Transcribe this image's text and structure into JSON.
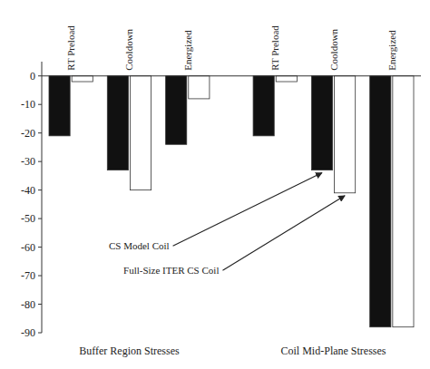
{
  "chart_data": {
    "type": "bar",
    "categories": [
      "RT Preload",
      "Cooldown",
      "Energized",
      "RT Preload",
      "Cooldown",
      "Energized"
    ],
    "group_labels": [
      "Buffer Region Stresses",
      "Coil Mid-Plane Stresses"
    ],
    "series": [
      {
        "color": "#111111",
        "values": [
          -21,
          -33,
          -24,
          -21,
          -33,
          -88
        ]
      },
      {
        "color": "#ffffff",
        "values": [
          -2,
          -40,
          -8,
          -2,
          -41,
          -88
        ]
      }
    ],
    "annotations": [
      "CS Model Coil",
      "Full-Size ITER CS Coil"
    ],
    "ylim": [
      -90,
      5
    ],
    "yticks": [
      0,
      -10,
      -20,
      -30,
      -40,
      -50,
      -60,
      -70,
      -80,
      -90
    ],
    "grid": false
  }
}
